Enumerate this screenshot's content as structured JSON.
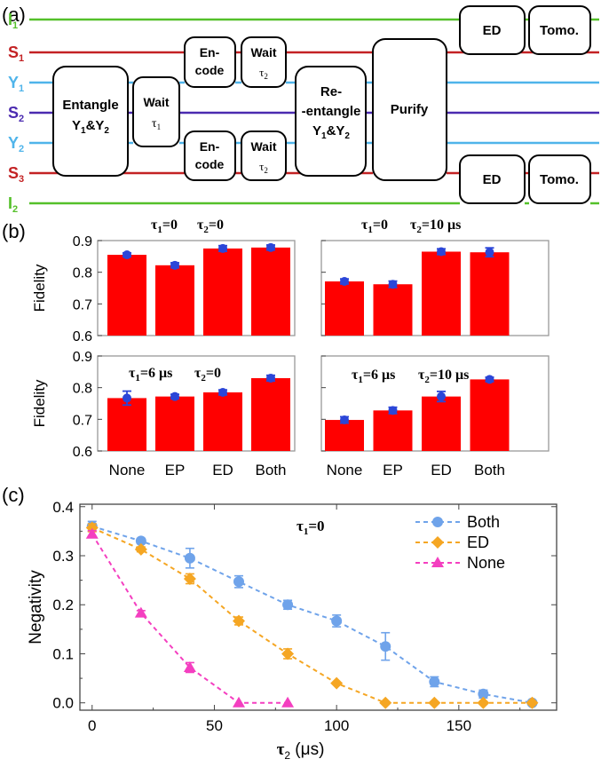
{
  "panel_a": {
    "label": "(a)",
    "lines": [
      {
        "id": "I1",
        "name": "I",
        "sub": "1",
        "color": "#55c02a"
      },
      {
        "id": "S1",
        "name": "S",
        "sub": "1",
        "color": "#c32224"
      },
      {
        "id": "Y1a",
        "name": "Y",
        "sub": "1",
        "color": "#4fb4ea"
      },
      {
        "id": "S2",
        "name": "S",
        "sub": "2",
        "color": "#4b2bb0"
      },
      {
        "id": "Y2a",
        "name": "Y",
        "sub": "2",
        "color": "#4fb4ea"
      },
      {
        "id": "S3",
        "name": "S",
        "sub": "3",
        "color": "#c32224"
      },
      {
        "id": "I2",
        "name": "I",
        "sub": "2",
        "color": "#55c02a"
      }
    ],
    "boxes": {
      "entangle": {
        "l1": "Entangle",
        "l2a": "Y",
        "l2s1": "1",
        "l2b": "&Y",
        "l2s2": "2"
      },
      "wait1": {
        "l1": "Wait",
        "tau": "τ",
        "sub": "1"
      },
      "encode_top": {
        "l1": "En-",
        "l2": "code"
      },
      "wait2_top": {
        "l1": "Wait",
        "tau": "τ",
        "sub": "2"
      },
      "encode_bot": {
        "l1": "En-",
        "l2": "code"
      },
      "wait2_bot": {
        "l1": "Wait",
        "tau": "τ",
        "sub": "2"
      },
      "reentangle": {
        "l1": "Re-",
        "l2": "-entangle",
        "l3a": "Y",
        "l3s1": "1",
        "l3b": "&Y",
        "l3s2": "2"
      },
      "purify": {
        "l1": "Purify"
      },
      "ed_top": {
        "l1": "ED"
      },
      "tomo_top": {
        "l1": "Tomo."
      },
      "ed_bot": {
        "l1": "ED"
      },
      "tomo_bot": {
        "l1": "Tomo."
      }
    }
  },
  "panel_b": {
    "label": "(b)",
    "ylabel": "Fidelity",
    "categories": [
      "None",
      "EP",
      "ED",
      "Both"
    ],
    "bar_color": "#ff0000",
    "marker_color": "#2b46d8",
    "yticks": [
      "0.6",
      "0.7",
      "0.8",
      "0.9"
    ],
    "ylim": [
      0.6,
      0.9
    ]
  },
  "panel_c": {
    "label": "(c)",
    "annotation_tau": "τ",
    "annotation_sub": "1",
    "annotation_eq": "=0",
    "ylabel": "Negativity",
    "xlabel_tau": "τ",
    "xlabel_sub": "2",
    "xlabel_unit": " (μs)",
    "xticks": [
      "0",
      "50",
      "100",
      "150"
    ],
    "yticks": [
      "0.0",
      "0.1",
      "0.2",
      "0.3",
      "0.4"
    ]
  },
  "chart_data": [
    {
      "type": "bar",
      "title_tau1": "τ",
      "title_sub1": "1",
      "title_val1": "=0",
      "title_tau2": "τ",
      "title_sub2": "2",
      "title_val2": "=0",
      "categories": [
        "None",
        "EP",
        "ED",
        "Both"
      ],
      "values": [
        0.855,
        0.822,
        0.875,
        0.878
      ],
      "errors": [
        0.006,
        0.008,
        0.009,
        0.008
      ],
      "ylabel": "Fidelity",
      "ylim": [
        0.6,
        0.9
      ]
    },
    {
      "type": "bar",
      "title_tau1": "τ",
      "title_sub1": "1",
      "title_val1": "=0",
      "title_tau2": "τ",
      "title_sub2": "2",
      "title_val2": "=10 μs",
      "categories": [
        "None",
        "EP",
        "ED",
        "Both"
      ],
      "values": [
        0.771,
        0.762,
        0.865,
        0.863
      ],
      "errors": [
        0.008,
        0.01,
        0.009,
        0.014
      ],
      "ylabel": "Fidelity",
      "ylim": [
        0.6,
        0.9
      ]
    },
    {
      "type": "bar",
      "title_tau1": "τ",
      "title_sub1": "1",
      "title_val1": "=6 μs",
      "title_tau2": "τ",
      "title_sub2": "2",
      "title_val2": "=0",
      "categories": [
        "None",
        "EP",
        "ED",
        "Both"
      ],
      "values": [
        0.767,
        0.772,
        0.785,
        0.83
      ],
      "errors": [
        0.022,
        0.007,
        0.008,
        0.009
      ],
      "ylabel": "Fidelity",
      "ylim": [
        0.6,
        0.9
      ]
    },
    {
      "type": "bar",
      "title_tau1": "τ",
      "title_sub1": "1",
      "title_val1": "=6 μs",
      "title_tau2": "τ",
      "title_sub2": "2",
      "title_val2": "=10 μs",
      "categories": [
        "None",
        "EP",
        "ED",
        "Both"
      ],
      "values": [
        0.698,
        0.728,
        0.772,
        0.826
      ],
      "errors": [
        0.01,
        0.01,
        0.016,
        0.007
      ],
      "ylabel": "Fidelity",
      "ylim": [
        0.6,
        0.9
      ]
    },
    {
      "type": "line",
      "xlabel": "τ2 (μs)",
      "ylabel": "Negativity",
      "xlim": [
        -5,
        190
      ],
      "ylim": [
        -0.015,
        0.405
      ],
      "legend_position": "top-right",
      "series": [
        {
          "name": "Both",
          "color": "#6fa3ea",
          "marker": "circle",
          "x": [
            0,
            20,
            40,
            60,
            80,
            100,
            120,
            140,
            160,
            180
          ],
          "y": [
            0.36,
            0.33,
            0.295,
            0.247,
            0.2,
            0.167,
            0.115,
            0.043,
            0.018,
            0.0
          ],
          "err": [
            0.01,
            0.005,
            0.02,
            0.012,
            0.009,
            0.012,
            0.028,
            0.01,
            0.008,
            0.0
          ]
        },
        {
          "name": "ED",
          "color": "#f5a623",
          "marker": "diamond",
          "x": [
            0,
            20,
            40,
            60,
            80,
            100,
            120,
            140,
            160,
            180
          ],
          "y": [
            0.357,
            0.313,
            0.253,
            0.167,
            0.1,
            0.04,
            0.0,
            0.0,
            0.0,
            0.0
          ],
          "err": [
            0.008,
            0.005,
            0.01,
            0.008,
            0.01,
            0.0,
            0.0,
            0.0,
            0.0,
            0.0
          ]
        },
        {
          "name": "None",
          "color": "#f43fc0",
          "marker": "triangle",
          "x": [
            0,
            20,
            40,
            60,
            80
          ],
          "y": [
            0.344,
            0.183,
            0.072,
            0.0,
            0.0
          ],
          "err": [
            0.007,
            0.005,
            0.01,
            0.0,
            0.0
          ]
        }
      ]
    }
  ]
}
